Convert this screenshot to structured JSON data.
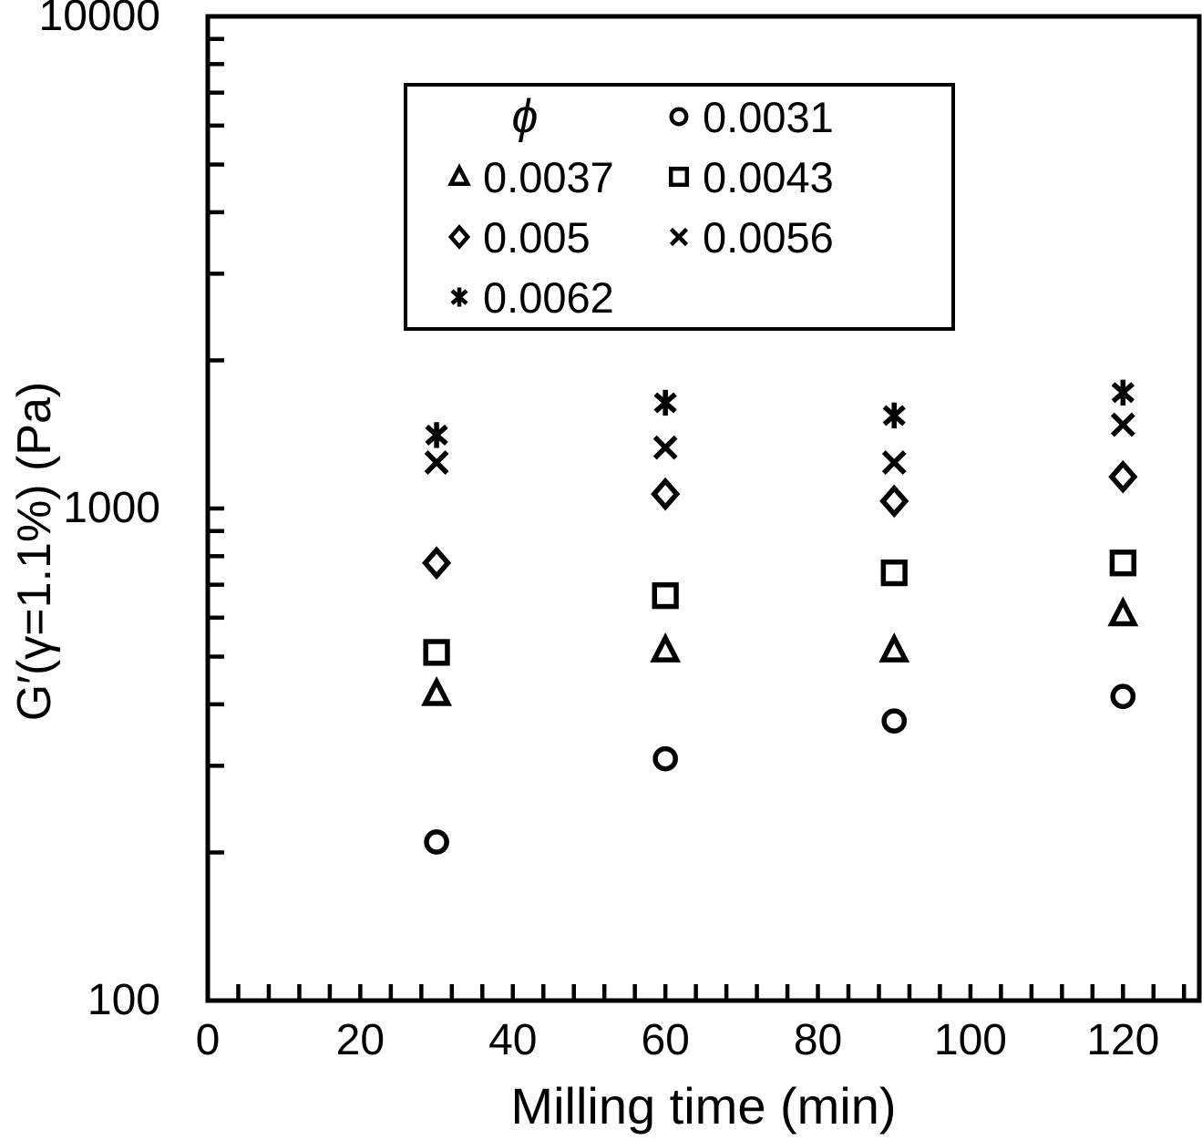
{
  "figure": {
    "background": "#ffffff",
    "foreground": "#000000"
  },
  "chart_data": {
    "type": "scatter",
    "title": "",
    "xlabel": "Milling time (min)",
    "ylabel": "G′(γ=1.1%) (Pa)",
    "legend": {
      "title": "ϕ",
      "position": "top-center-inside",
      "border": true
    },
    "x_axis": {
      "scale": "linear",
      "min": 0,
      "max": 130,
      "major_ticks": [
        0,
        20,
        40,
        60,
        80,
        100,
        120
      ],
      "tick_labels": [
        "0",
        "20",
        "40",
        "60",
        "80",
        "100",
        "120"
      ],
      "minor_step": 4
    },
    "y_axis": {
      "scale": "log",
      "min": 100,
      "max": 10000,
      "major_ticks": [
        100,
        1000,
        10000
      ],
      "tick_labels": [
        "100",
        "1000",
        "10000"
      ]
    },
    "x": [
      30,
      60,
      90,
      120
    ],
    "series": [
      {
        "name": "0.0031",
        "marker": "circle",
        "values": [
          210,
          310,
          370,
          415
        ]
      },
      {
        "name": "0.0037",
        "marker": "triangle",
        "values": [
          420,
          515,
          515,
          610
        ]
      },
      {
        "name": "0.0043",
        "marker": "square",
        "values": [
          510,
          665,
          740,
          775
        ]
      },
      {
        "name": "0.005",
        "marker": "diamond",
        "values": [
          775,
          1070,
          1035,
          1160
        ]
      },
      {
        "name": "0.0056",
        "marker": "x",
        "values": [
          1240,
          1330,
          1240,
          1480
        ]
      },
      {
        "name": "0.0062",
        "marker": "star",
        "values": [
          1410,
          1640,
          1545,
          1720
        ]
      }
    ]
  }
}
